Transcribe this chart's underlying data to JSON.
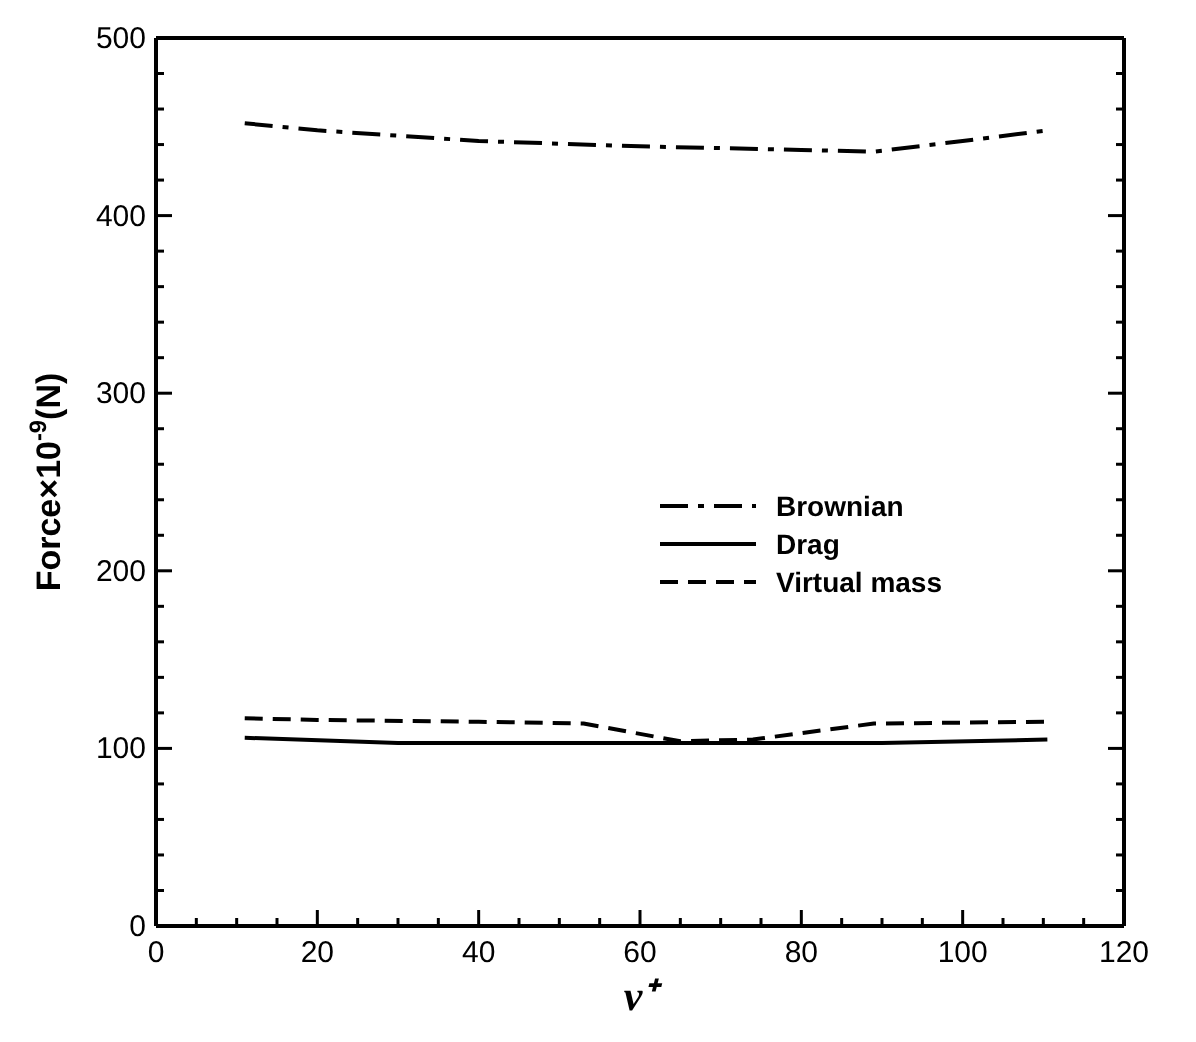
{
  "chart_data": {
    "type": "line",
    "xlabel": "ν⁺",
    "ylabel": "Force×10$^{-9}$(N)",
    "xlim": [
      0,
      120
    ],
    "xticks": [
      0,
      {
        "value": 5,
        "label": null
      },
      {
        "value": 10,
        "label": null
      },
      {
        "value": 15,
        "label": null
      },
      20,
      {
        "value": 25,
        "label": null
      },
      {
        "value": 30,
        "label": null
      },
      {
        "value": 35,
        "label": null
      },
      40,
      {
        "value": 45,
        "label": null
      },
      {
        "value": 50,
        "label": null
      },
      {
        "value": 55,
        "label": null
      },
      60,
      {
        "value": 65,
        "label": null
      },
      {
        "value": 70,
        "label": null
      },
      {
        "value": 75,
        "label": null
      },
      80,
      {
        "value": 85,
        "label": null
      },
      {
        "value": 90,
        "label": null
      },
      {
        "value": 95,
        "label": null
      },
      100,
      {
        "value": 105,
        "label": null
      },
      {
        "value": 110,
        "label": null
      },
      {
        "value": 115,
        "label": null
      },
      120
    ],
    "ylim": [
      0,
      500
    ],
    "yticks": [
      0,
      {
        "value": 20,
        "label": null
      },
      {
        "value": 40,
        "label": null
      },
      {
        "value": 60,
        "label": null
      },
      {
        "value": 80,
        "label": null
      },
      100,
      {
        "value": 120,
        "label": null
      },
      {
        "value": 140,
        "label": null
      },
      {
        "value": 160,
        "label": null
      },
      {
        "value": 180,
        "label": null
      },
      200,
      {
        "value": 220,
        "label": null
      },
      {
        "value": 240,
        "label": null
      },
      {
        "value": 260,
        "label": null
      },
      {
        "value": 280,
        "label": null
      },
      300,
      {
        "value": 320,
        "label": null
      },
      {
        "value": 340,
        "label": null
      },
      {
        "value": 360,
        "label": null
      },
      {
        "value": 380,
        "label": null
      },
      400,
      {
        "value": 420,
        "label": null
      },
      {
        "value": 440,
        "label": null
      },
      {
        "value": 460,
        "label": null
      },
      {
        "value": 480,
        "label": null
      },
      500
    ],
    "grid": false,
    "legend": "right",
    "marker": "none",
    "series": [
      {
        "name": "Brownian",
        "color": "#000000",
        "line_style": "dashdot",
        "x": [
          11,
          20,
          40,
          60,
          80,
          89,
          100,
          110.5
        ],
        "values": [
          452,
          448,
          442,
          439,
          437,
          436,
          442,
          448
        ]
      },
      {
        "name": "Drag",
        "color": "#000000",
        "line_style": "solid",
        "x": [
          11,
          30,
          50,
          70,
          90,
          110.5
        ],
        "values": [
          106,
          103,
          103,
          103,
          103,
          105
        ]
      },
      {
        "name": "Virtual mass",
        "color": "#000000",
        "line_style": "dashed",
        "x": [
          11,
          20,
          40,
          53,
          65,
          74,
          89,
          110.5
        ],
        "values": [
          117,
          116,
          115,
          114,
          104,
          105,
          114,
          115
        ]
      }
    ]
  }
}
